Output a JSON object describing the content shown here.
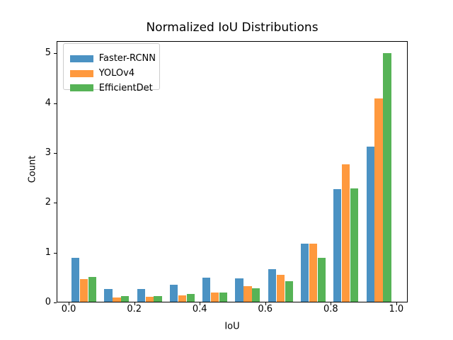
{
  "title": "Normalized IoU Distributions",
  "chart_data": {
    "type": "bar",
    "title": "Normalized IoU Distributions",
    "xlabel": "IoU",
    "ylabel": "Count",
    "bin_edges": [
      0.0,
      0.1,
      0.2,
      0.3,
      0.4,
      0.5,
      0.6,
      0.7,
      0.8,
      0.9,
      1.0
    ],
    "categories": [
      "0.0-0.1",
      "0.1-0.2",
      "0.2-0.3",
      "0.3-0.4",
      "0.4-0.5",
      "0.5-0.6",
      "0.6-0.7",
      "0.7-0.8",
      "0.8-0.9",
      "0.9-1.0"
    ],
    "series": [
      {
        "name": "Faster-RCNN",
        "color": "#4B92C3",
        "values": [
          0.9,
          0.27,
          0.28,
          0.36,
          0.5,
          0.48,
          0.67,
          1.18,
          2.28,
          3.13
        ]
      },
      {
        "name": "YOLOv4",
        "color": "#FF993E",
        "values": [
          0.47,
          0.11,
          0.12,
          0.14,
          0.2,
          0.33,
          0.56,
          1.18,
          2.78,
          4.1
        ]
      },
      {
        "name": "EfficientDet",
        "color": "#56B356",
        "values": [
          0.52,
          0.13,
          0.13,
          0.17,
          0.2,
          0.29,
          0.43,
          0.9,
          2.29,
          5.01
        ]
      }
    ],
    "x_ticks": [
      0.0,
      0.2,
      0.4,
      0.6,
      0.8,
      1.0
    ],
    "x_tick_labels": [
      "0.0",
      "0.2",
      "0.4",
      "0.6",
      "0.8",
      "1.0"
    ],
    "y_ticks": [
      0,
      1,
      2,
      3,
      4,
      5
    ],
    "y_tick_labels": [
      "0",
      "1",
      "2",
      "3",
      "4",
      "5"
    ],
    "xlim": [
      -0.037,
      1.035
    ],
    "ylim": [
      0,
      5.25
    ],
    "grid": false,
    "legend_position": "upper left",
    "bar_layout": {
      "offset": 0.0086,
      "step": 0.0257,
      "width": 0.0245
    }
  }
}
